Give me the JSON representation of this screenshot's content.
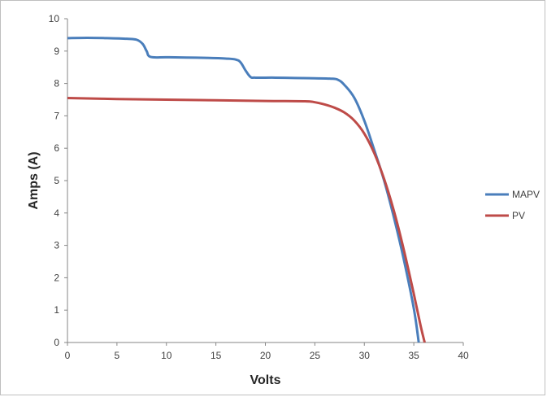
{
  "chart_data": {
    "type": "line",
    "title": "",
    "xlabel": "Volts",
    "ylabel": "Amps (A)",
    "xlim": [
      0,
      40
    ],
    "ylim": [
      0,
      10
    ],
    "xticks": [
      0,
      5,
      10,
      15,
      20,
      25,
      30,
      35,
      40
    ],
    "yticks": [
      0,
      1,
      2,
      3,
      4,
      5,
      6,
      7,
      8,
      9,
      10
    ],
    "grid": false,
    "legend_position": "right",
    "series": [
      {
        "name": "MAPV",
        "color": "#4a7ebb",
        "points": [
          [
            0,
            9.4
          ],
          [
            2,
            9.41
          ],
          [
            4,
            9.4
          ],
          [
            6,
            9.38
          ],
          [
            7,
            9.35
          ],
          [
            7.6,
            9.22
          ],
          [
            8.0,
            9.0
          ],
          [
            8.4,
            8.82
          ],
          [
            10,
            8.81
          ],
          [
            12,
            8.8
          ],
          [
            14,
            8.79
          ],
          [
            16,
            8.77
          ],
          [
            17,
            8.74
          ],
          [
            17.5,
            8.65
          ],
          [
            18,
            8.4
          ],
          [
            18.5,
            8.2
          ],
          [
            19,
            8.18
          ],
          [
            21,
            8.18
          ],
          [
            23,
            8.17
          ],
          [
            25,
            8.16
          ],
          [
            26.5,
            8.15
          ],
          [
            27.3,
            8.12
          ],
          [
            28,
            7.95
          ],
          [
            29,
            7.55
          ],
          [
            30,
            6.85
          ],
          [
            31,
            5.95
          ],
          [
            32,
            5.0
          ],
          [
            33,
            3.85
          ],
          [
            34,
            2.55
          ],
          [
            35,
            1.05
          ],
          [
            35.5,
            0
          ]
        ]
      },
      {
        "name": "PV",
        "color": "#be4b48",
        "points": [
          [
            0,
            7.55
          ],
          [
            5,
            7.52
          ],
          [
            10,
            7.5
          ],
          [
            15,
            7.48
          ],
          [
            20,
            7.46
          ],
          [
            24,
            7.45
          ],
          [
            25,
            7.42
          ],
          [
            26,
            7.35
          ],
          [
            27,
            7.25
          ],
          [
            28,
            7.1
          ],
          [
            29,
            6.85
          ],
          [
            30,
            6.45
          ],
          [
            31,
            5.85
          ],
          [
            32,
            5.05
          ],
          [
            33,
            4.05
          ],
          [
            34,
            2.85
          ],
          [
            35,
            1.5
          ],
          [
            35.7,
            0.5
          ],
          [
            36.1,
            0
          ]
        ]
      }
    ]
  }
}
